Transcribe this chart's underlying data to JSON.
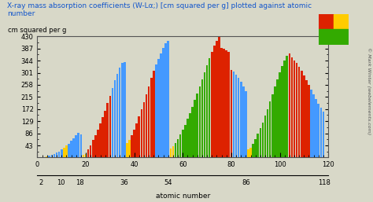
{
  "title": "X-ray mass absorption coefficients (W-Lα;) [cm squared per g] plotted against atomic\nnumber",
  "ylabel": "cm squared per g",
  "xlabel": "atomic number",
  "xlabel2_ticks": [
    2,
    10,
    18,
    36,
    54,
    86,
    118
  ],
  "xlabel1_ticks": [
    0,
    20,
    40,
    60,
    80,
    100,
    120
  ],
  "ylim": [
    0,
    430
  ],
  "xlim": [
    0.5,
    119.5
  ],
  "yticks": [
    43,
    86,
    129,
    172,
    215,
    258,
    301,
    344,
    387,
    430
  ],
  "background_color": "#d8d8c8",
  "title_color": "#1155cc",
  "ylabel_color": "#000000",
  "watermark": "© Mark Winter (webelements.com)",
  "colors": {
    "s": "#ffcc00",
    "p": "#4499ff",
    "d": "#dd2200",
    "f": "#33aa00"
  },
  "coeffs": {
    "1": 0.4,
    "2": 0.3,
    "3": 1.5,
    "4": 3.5,
    "5": 6,
    "6": 9,
    "7": 13,
    "8": 17,
    "9": 22,
    "10": 28,
    "11": 35,
    "12": 42,
    "13": 50,
    "14": 59,
    "15": 68,
    "16": 78,
    "17": 88,
    "18": 83,
    "19": 10,
    "20": 13,
    "21": 28,
    "22": 44,
    "23": 62,
    "24": 80,
    "25": 100,
    "26": 121,
    "27": 143,
    "28": 167,
    "29": 193,
    "30": 220,
    "31": 247,
    "32": 275,
    "33": 298,
    "34": 320,
    "35": 335,
    "36": 340,
    "37": 52,
    "38": 62,
    "39": 80,
    "40": 100,
    "41": 122,
    "42": 145,
    "43": 170,
    "44": 196,
    "45": 224,
    "46": 253,
    "47": 282,
    "48": 308,
    "49": 330,
    "50": 350,
    "51": 370,
    "52": 388,
    "53": 405,
    "54": 415,
    "55": 32,
    "56": 40,
    "57": 52,
    "58": 66,
    "59": 82,
    "60": 99,
    "61": 117,
    "62": 137,
    "63": 158,
    "64": 180,
    "65": 204,
    "66": 228,
    "67": 253,
    "68": 278,
    "69": 303,
    "70": 328,
    "71": 352,
    "72": 375,
    "73": 396,
    "74": 415,
    "75": 428,
    "76": 390,
    "77": 385,
    "78": 380,
    "79": 375,
    "80": 310,
    "81": 305,
    "82": 295,
    "83": 282,
    "84": 268,
    "85": 252,
    "86": 235,
    "87": 28,
    "88": 36,
    "89": 50,
    "90": 66,
    "91": 84,
    "92": 104,
    "93": 125,
    "94": 148,
    "95": 172,
    "96": 198,
    "97": 225,
    "98": 252,
    "99": 278,
    "100": 303,
    "101": 326,
    "102": 345,
    "103": 360,
    "104": 370,
    "105": 355,
    "106": 345,
    "107": 335,
    "108": 322,
    "109": 308,
    "110": 292,
    "111": 275,
    "112": 258,
    "113": 242,
    "114": 225,
    "115": 208,
    "116": 192,
    "117": 176,
    "118": 162
  }
}
